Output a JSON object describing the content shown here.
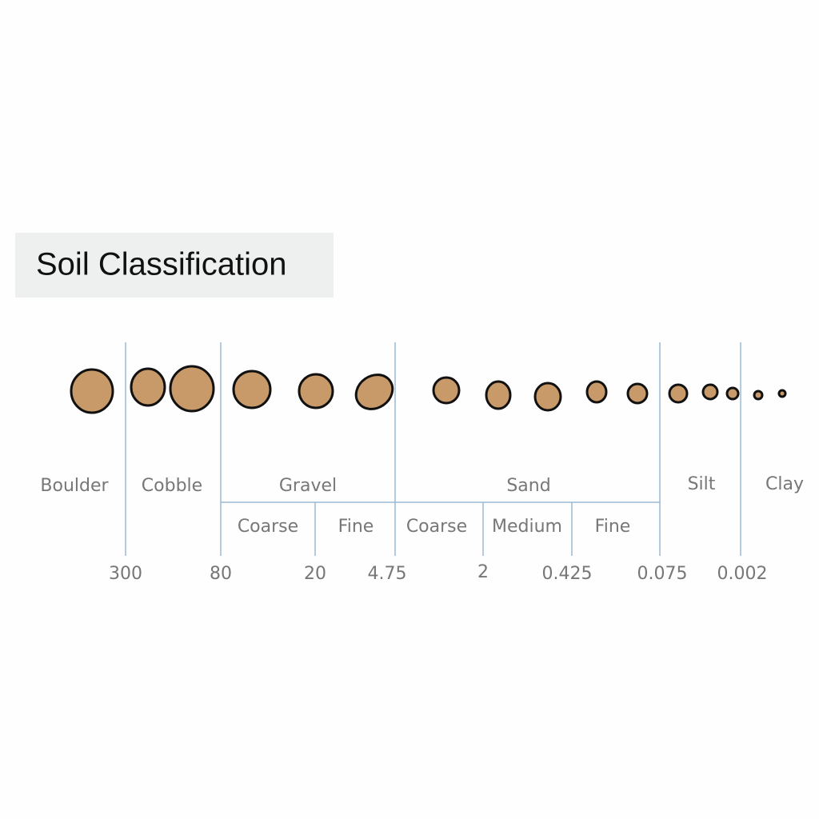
{
  "title": "Soil Classification",
  "classes": [
    {
      "label": "Boulder"
    },
    {
      "label": "Cobble"
    },
    {
      "label": "Gravel",
      "subclasses": [
        "Coarse",
        "Fine"
      ]
    },
    {
      "label": "Sand",
      "subclasses": [
        "Coarse",
        "Medium",
        "Fine"
      ]
    },
    {
      "label": "Silt"
    },
    {
      "label": "Clay"
    }
  ],
  "boundaries": [
    "300",
    "80",
    "20",
    "4.75",
    "2",
    "0.425",
    "0.075",
    "0.002"
  ]
}
